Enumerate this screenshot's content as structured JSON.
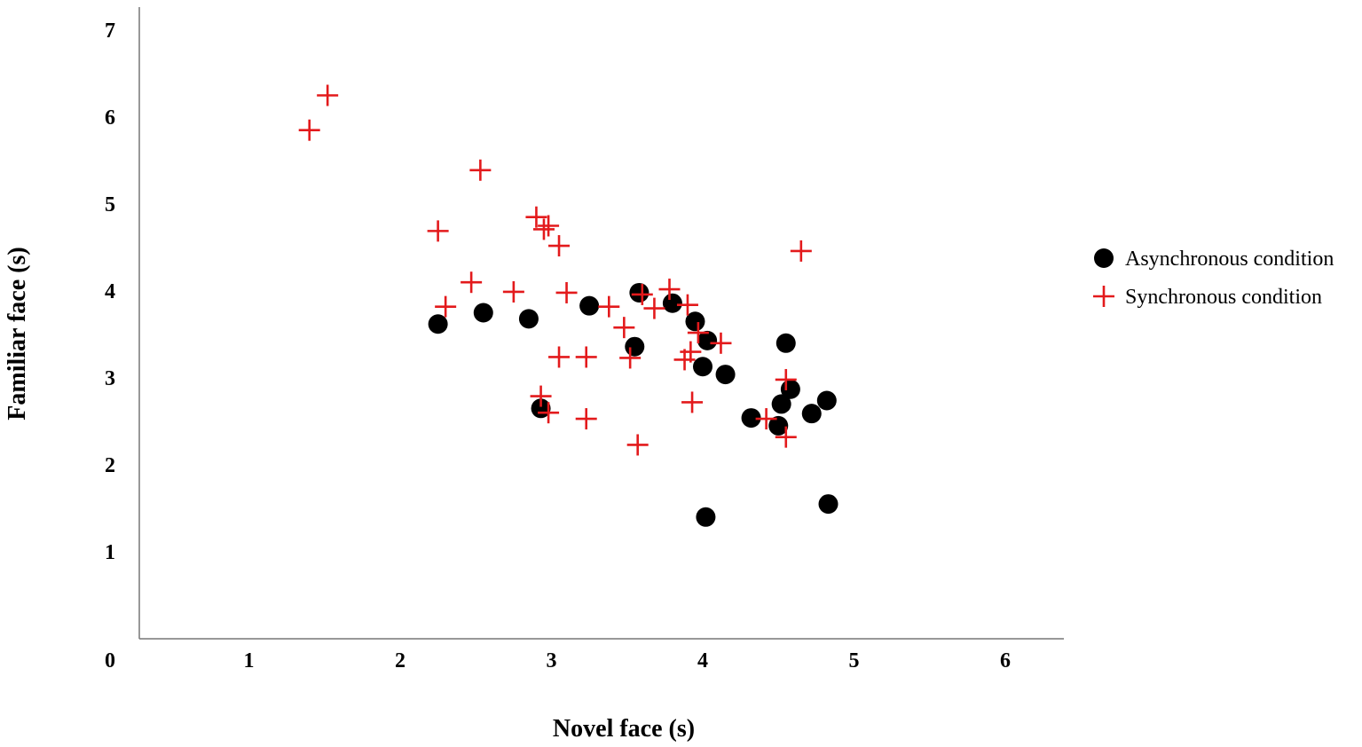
{
  "chart_data": {
    "type": "scatter",
    "title": "",
    "xlabel": "Novel face (s)",
    "ylabel": "Familiar face (s)",
    "xlim": [
      0,
      6.25
    ],
    "ylim": [
      0,
      7.25
    ],
    "x_ticks": [
      "0",
      "1",
      "2",
      "3",
      "4",
      "5",
      "6"
    ],
    "y_ticks": [
      "1",
      "2",
      "3",
      "4",
      "5",
      "6",
      "7"
    ],
    "grid": false,
    "legend_position": "right",
    "series": [
      {
        "name": "Asynchronous condition",
        "marker": "circle",
        "color": "#000000",
        "points": [
          [
            2.25,
            3.62
          ],
          [
            2.55,
            3.75
          ],
          [
            2.85,
            3.68
          ],
          [
            3.25,
            3.83
          ],
          [
            3.55,
            3.36
          ],
          [
            3.58,
            3.98
          ],
          [
            3.8,
            3.86
          ],
          [
            3.95,
            3.65
          ],
          [
            4.0,
            3.13
          ],
          [
            4.03,
            3.43
          ],
          [
            4.15,
            3.04
          ],
          [
            2.93,
            2.65
          ],
          [
            4.32,
            2.54
          ],
          [
            4.5,
            2.45
          ],
          [
            4.52,
            2.7
          ],
          [
            4.55,
            3.4
          ],
          [
            4.58,
            2.87
          ],
          [
            4.72,
            2.59
          ],
          [
            4.82,
            2.74
          ],
          [
            4.02,
            1.4
          ],
          [
            4.83,
            1.55
          ]
        ]
      },
      {
        "name": "Synchronous condition",
        "marker": "plus",
        "color": "#e31a1c",
        "points": [
          [
            1.52,
            6.25
          ],
          [
            1.4,
            5.85
          ],
          [
            2.53,
            5.39
          ],
          [
            2.25,
            4.69
          ],
          [
            2.9,
            4.85
          ],
          [
            2.95,
            4.71
          ],
          [
            2.98,
            4.75
          ],
          [
            3.05,
            4.52
          ],
          [
            2.47,
            4.1
          ],
          [
            2.75,
            3.99
          ],
          [
            3.1,
            3.98
          ],
          [
            2.3,
            3.82
          ],
          [
            3.38,
            3.82
          ],
          [
            3.48,
            3.58
          ],
          [
            3.52,
            3.23
          ],
          [
            3.05,
            3.24
          ],
          [
            3.23,
            3.24
          ],
          [
            2.93,
            2.79
          ],
          [
            2.98,
            2.6
          ],
          [
            3.23,
            2.53
          ],
          [
            3.57,
            2.23
          ],
          [
            3.6,
            3.96
          ],
          [
            3.68,
            3.8
          ],
          [
            3.78,
            4.02
          ],
          [
            3.9,
            3.84
          ],
          [
            3.88,
            3.21
          ],
          [
            3.92,
            3.3
          ],
          [
            3.97,
            3.52
          ],
          [
            4.12,
            3.4
          ],
          [
            3.93,
            2.72
          ],
          [
            4.42,
            2.53
          ],
          [
            4.55,
            2.98
          ],
          [
            4.55,
            2.32
          ],
          [
            4.65,
            4.46
          ]
        ]
      }
    ]
  }
}
